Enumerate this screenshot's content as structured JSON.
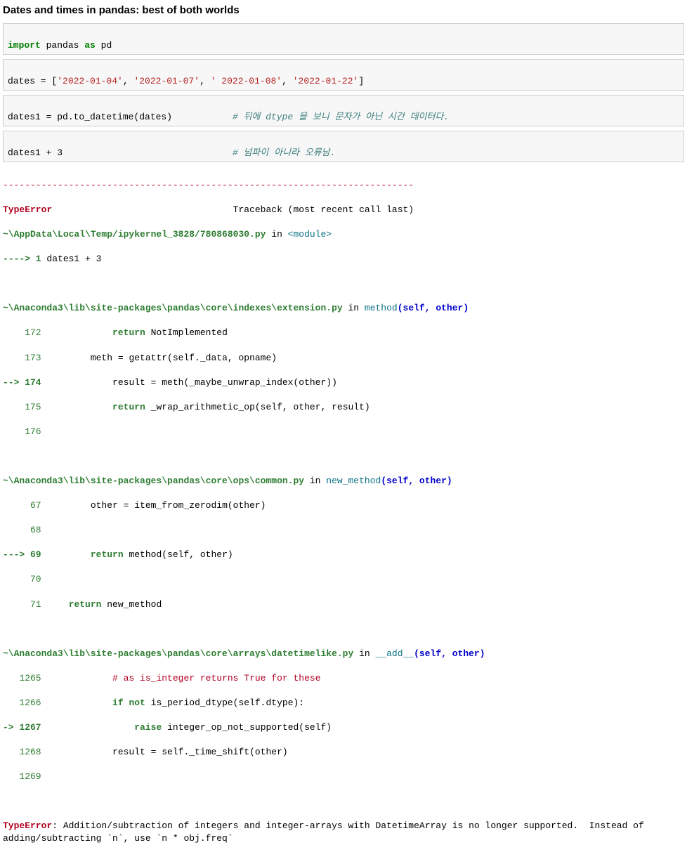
{
  "heading": "Dates and times in pandas: best of both worlds",
  "cells": {
    "cell1": {
      "kw": "import",
      "mid": " pandas ",
      "kw2": "as",
      "tail": " pd"
    },
    "cell2": {
      "pre": "dates = [",
      "s1": "'2022-01-04'",
      "c1": ", ",
      "s2": "'2022-01-07'",
      "c2": ", ",
      "s3": "' 2022-01-08'",
      "c3": ", ",
      "s4": "'2022-01-22'",
      "post": "]"
    },
    "cell3": {
      "code": "dates1 = pd.to_datetime(dates)           ",
      "comment": "# 뒤에 dtype 을 보니 문자가 아닌 시간 데이터다."
    },
    "cell4": {
      "code": "dates1 + 3                               ",
      "comment": "# 넘파이 아니라 오류남."
    }
  },
  "traceback": {
    "dashes": "---------------------------------------------------------------------------",
    "error_name": "TypeError",
    "traceback_label": "                                 Traceback (most recent call last)",
    "f0": {
      "path": "~\\AppData\\Local\\Temp/ipykernel_3828/780868030.py",
      "in": " in ",
      "func": "<module>",
      "arrow": "----> 1",
      "code": " dates1 + 3"
    },
    "f1": {
      "path": "~\\Anaconda3\\lib\\site-packages\\pandas\\core\\indexes\\extension.py",
      "in": " in ",
      "func": "method",
      "sig_open": "(self, other)",
      "l172": {
        "no": "    172 ",
        "pre": "            ",
        "kw": "return",
        "rest": " NotImplemented"
      },
      "l173": {
        "no": "    173 ",
        "rest": "        meth = getattr(self._data, opname)"
      },
      "l174": {
        "arrow": "--> 174 ",
        "rest": "            result = meth(_maybe_unwrap_index(other))"
      },
      "l175": {
        "no": "    175 ",
        "pre": "            ",
        "kw": "return",
        "rest": " _wrap_arithmetic_op(self, other, result)"
      },
      "l176": {
        "no": "    176 ",
        "rest": ""
      }
    },
    "f2": {
      "path": "~\\Anaconda3\\lib\\site-packages\\pandas\\core\\ops\\common.py",
      "in": " in ",
      "func": "new_method",
      "sig_open": "(self, other)",
      "l67": {
        "no": "     67 ",
        "rest": "        other = item_from_zerodim(other)"
      },
      "l68": {
        "no": "     68 ",
        "rest": ""
      },
      "l69": {
        "arrow": "---> 69 ",
        "pre": "        ",
        "kw": "return",
        "rest": " method(self, other)"
      },
      "l70": {
        "no": "     70 ",
        "rest": ""
      },
      "l71": {
        "no": "     71 ",
        "pre": "    ",
        "kw": "return",
        "rest": " new_method"
      }
    },
    "f3": {
      "path": "~\\Anaconda3\\lib\\site-packages\\pandas\\core\\arrays\\datetimelike.py",
      "in": " in ",
      "func": "__add__",
      "sig_open": "(self, other)",
      "l1265": {
        "no": "   1265 ",
        "pre": "            ",
        "cmt": "# as is_integer returns True for these"
      },
      "l1266": {
        "no": "   1266 ",
        "pre": "            ",
        "kw": "if not",
        "rest": " is_period_dtype(self.dtype):"
      },
      "l1267": {
        "arrow": "-> 1267 ",
        "pre": "                ",
        "kw": "raise",
        "rest": " integer_op_not_supported(self)"
      },
      "l1268": {
        "no": "   1268 ",
        "rest": "            result = self._time_shift(other)"
      },
      "l1269": {
        "no": "   1269 ",
        "rest": ""
      }
    },
    "final": {
      "name": "TypeError",
      "msg": ": Addition/subtraction of integers and integer-arrays with DatetimeArray is no longer supported.  Instead of adding/subtracting `n`, use `n * obj.freq`"
    }
  }
}
